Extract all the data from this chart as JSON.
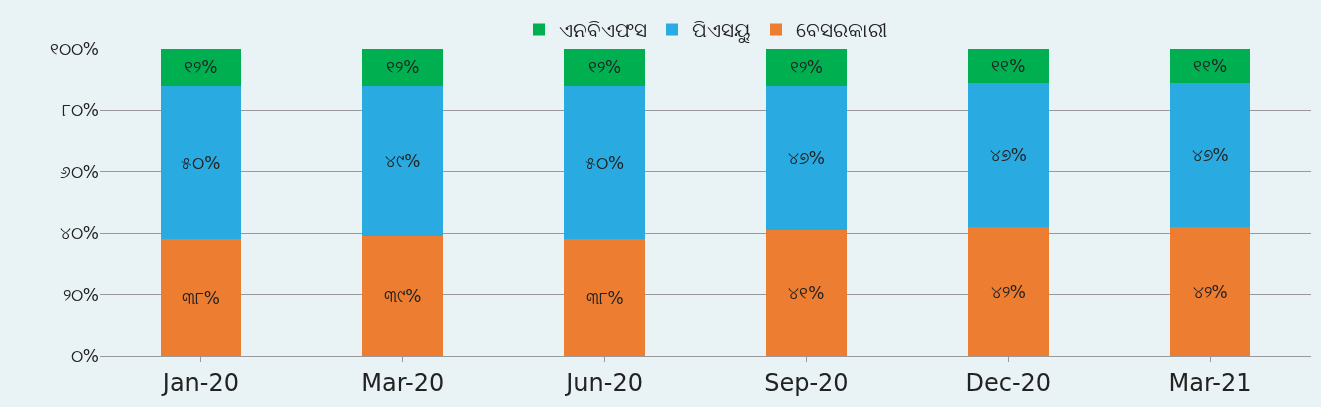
{
  "chart_data": {
    "type": "bar",
    "stacked": true,
    "categories": [
      "Jan-20",
      "Mar-20",
      "Jun-20",
      "Sep-20",
      "Dec-20",
      "Mar-21"
    ],
    "series": [
      {
        "name": "ବେସରକାରୀ",
        "color": "#ed7d31",
        "values": [
          38,
          39,
          38,
          41,
          42,
          42
        ],
        "value_labels": [
          "୩୮%",
          "୩୯%",
          "୩୮%",
          "୪୧%",
          "୪୨%",
          "୪୨%"
        ]
      },
      {
        "name": "ପିଏସୟୁ",
        "color": "#29abe2",
        "values": [
          50,
          49,
          50,
          47,
          47,
          47
        ],
        "value_labels": [
          "୫୦%",
          "୪୯%",
          "୫୦%",
          "୪୭%",
          "୪୭%",
          "୪୭%"
        ]
      },
      {
        "name": "ଏନବିଏଫସ",
        "color": "#00b050",
        "values": [
          12,
          12,
          12,
          12,
          11,
          11
        ],
        "value_labels": [
          "୧୨%",
          "୧୨%",
          "୧୨%",
          "୧୨%",
          "୧୧%",
          "୧୧%"
        ]
      }
    ],
    "ylim": [
      0,
      100
    ],
    "yticks": [
      {
        "value": 0,
        "label": "୦%"
      },
      {
        "value": 20,
        "label": "୨୦%"
      },
      {
        "value": 40,
        "label": "୪୦%"
      },
      {
        "value": 60,
        "label": "୬୦%"
      },
      {
        "value": 80,
        "label": "୮୦%"
      },
      {
        "value": 100,
        "label": "୧୦୦%"
      }
    ],
    "grid": "y",
    "legend": "top"
  }
}
